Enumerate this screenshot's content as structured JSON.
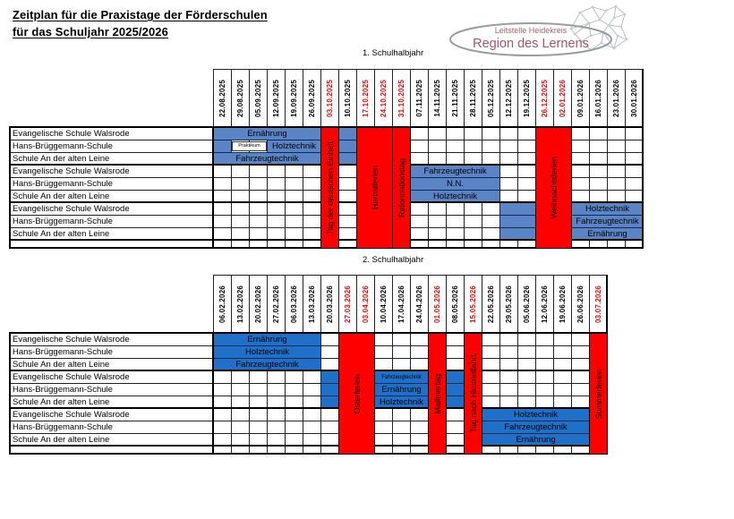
{
  "page": {
    "title_line1": "Zeitplan für die Praxistage der Förderschulen",
    "title_line2": "für das Schuljahr 2025/2026"
  },
  "logo": {
    "subtitle": "Leitstelle Heidekreis",
    "title": "Region des Lernens",
    "subtitle_color": "#9b6470",
    "title_color": "#a4556a"
  },
  "colors": {
    "holiday_red": "#ff0000",
    "date_red": "#ff0000",
    "practice_blue_h1": "#5b84c6",
    "practice_blue_h2": "#2070c9",
    "grid": "#222222"
  },
  "halfyears": [
    {
      "label": "1. Schulhalbjahr",
      "dates": [
        {
          "d": "22.08.2025",
          "red": false
        },
        {
          "d": "29.08.2025",
          "red": false
        },
        {
          "d": "05.09.2025",
          "red": false
        },
        {
          "d": "12.09.2025",
          "red": false
        },
        {
          "d": "19.09.2025",
          "red": false
        },
        {
          "d": "26.09.2025",
          "red": false
        },
        {
          "d": "03.10.2025",
          "red": true
        },
        {
          "d": "10.10.2025",
          "red": false
        },
        {
          "d": "17.10.2025",
          "red": true
        },
        {
          "d": "24.10.2025",
          "red": true
        },
        {
          "d": "31.10.2025",
          "red": true
        },
        {
          "d": "07.11.2025",
          "red": false
        },
        {
          "d": "14.11.2025",
          "red": false
        },
        {
          "d": "21.11.2025",
          "red": false
        },
        {
          "d": "28.11.2025",
          "red": false
        },
        {
          "d": "05.12.2025",
          "red": false
        },
        {
          "d": "12.12.2025",
          "red": false
        },
        {
          "d": "19.12.2025",
          "red": false
        },
        {
          "d": "26.12.2025",
          "red": true
        },
        {
          "d": "02.01.2026",
          "red": true
        },
        {
          "d": "09.01.2026",
          "red": false
        },
        {
          "d": "16.01.2026",
          "red": false
        },
        {
          "d": "23.01.2026",
          "red": false
        },
        {
          "d": "30.01.2026",
          "red": false
        }
      ],
      "holidays": [
        {
          "col": 7,
          "span": 1,
          "label": "Tag der deutschen Einheit"
        },
        {
          "col": 9,
          "span": 2,
          "label": "Herbstferien"
        },
        {
          "col": 11,
          "span": 1,
          "label": "Reformationstag"
        },
        {
          "col": 19,
          "span": 2,
          "label": "Weihnachtsferien"
        }
      ],
      "rows": [
        {
          "school": "Evangelische Schule Walsrode",
          "blocks": [
            {
              "col": 1,
              "span": 6,
              "label": "Ernährung",
              "type": "blue"
            },
            {
              "col": 8,
              "span": 1,
              "label": "",
              "type": "blue"
            }
          ]
        },
        {
          "school": "Hans-Brüggemann-Schule",
          "blocks": [
            {
              "col": 1,
              "span": 1,
              "label": "",
              "type": "blue"
            },
            {
              "col": 2,
              "span": 2,
              "label": "Praktikum",
              "type": "outline"
            },
            {
              "col": 4,
              "span": 3,
              "label": "Holztechnik",
              "type": "blue"
            },
            {
              "col": 8,
              "span": 1,
              "label": "",
              "type": "blue"
            }
          ]
        },
        {
          "school": "Schule An der alten Leine",
          "blocks": [
            {
              "col": 1,
              "span": 6,
              "label": "Fahrzeugtechnik",
              "type": "blue"
            },
            {
              "col": 8,
              "span": 1,
              "label": "",
              "type": "blue"
            }
          ]
        },
        {
          "school": "Evangelische Schule Walsrode",
          "blocks": [
            {
              "col": 12,
              "span": 5,
              "label": "Fahrzeugtechnik",
              "type": "blue"
            }
          ]
        },
        {
          "school": "Hans-Brüggemann-Schule",
          "blocks": [
            {
              "col": 12,
              "span": 5,
              "label": "N.N.",
              "type": "blue"
            }
          ]
        },
        {
          "school": "Schule An der alten Leine",
          "blocks": [
            {
              "col": 12,
              "span": 5,
              "label": "Holztechnik",
              "type": "blue"
            }
          ]
        },
        {
          "school": "Evangelische Schule Walsrode",
          "blocks": [
            {
              "col": 17,
              "span": 2,
              "label": "",
              "type": "blue"
            },
            {
              "col": 21,
              "span": 4,
              "label": "Holztechnik",
              "type": "blue"
            }
          ]
        },
        {
          "school": "Hans-Brüggemann-Schule",
          "blocks": [
            {
              "col": 17,
              "span": 2,
              "label": "",
              "type": "blue"
            },
            {
              "col": 21,
              "span": 4,
              "label": "Fahrzeugtechnik",
              "type": "blue"
            }
          ]
        },
        {
          "school": "Schule An der alten Leine",
          "blocks": [
            {
              "col": 17,
              "span": 2,
              "label": "",
              "type": "blue"
            },
            {
              "col": 21,
              "span": 4,
              "label": "Ernährung",
              "type": "blue"
            }
          ]
        }
      ]
    },
    {
      "label": "2. Schulhalbjahr",
      "dates": [
        {
          "d": "06.02.2026",
          "red": false
        },
        {
          "d": "13.02.2026",
          "red": false
        },
        {
          "d": "20.02.2026",
          "red": false
        },
        {
          "d": "27.02.2026",
          "red": false
        },
        {
          "d": "06.03.2026",
          "red": false
        },
        {
          "d": "13.03.2026",
          "red": false
        },
        {
          "d": "20.03.2026",
          "red": false
        },
        {
          "d": "27.03.2026",
          "red": true
        },
        {
          "d": "03.04.2026",
          "red": true
        },
        {
          "d": "10.04.2026",
          "red": false
        },
        {
          "d": "17.04.2026",
          "red": false
        },
        {
          "d": "24.04.2026",
          "red": false
        },
        {
          "d": "01.05.2026",
          "red": true
        },
        {
          "d": "08.05.2026",
          "red": false
        },
        {
          "d": "15.05.2026",
          "red": true
        },
        {
          "d": "22.05.2026",
          "red": false
        },
        {
          "d": "29.05.2026",
          "red": false
        },
        {
          "d": "05.06.2026",
          "red": false
        },
        {
          "d": "12.06.2026",
          "red": false
        },
        {
          "d": "19.06.2026",
          "red": false
        },
        {
          "d": "26.06.2026",
          "red": false
        },
        {
          "d": "03.07.2026",
          "red": true
        }
      ],
      "holidays": [
        {
          "col": 8,
          "span": 2,
          "label": "Osterferien"
        },
        {
          "col": 13,
          "span": 1,
          "label": "Maifeiertag"
        },
        {
          "col": 15,
          "span": 1,
          "label": "Tag nach Himmelfahrt"
        },
        {
          "col": 22,
          "span": 1,
          "label": "Sommerferien"
        }
      ],
      "rows": [
        {
          "school": "Evangelische Schule Walsrode",
          "blocks": [
            {
              "col": 1,
              "span": 6,
              "label": "Ernährung",
              "type": "blue"
            }
          ]
        },
        {
          "school": "Hans-Brüggemann-Schule",
          "blocks": [
            {
              "col": 1,
              "span": 6,
              "label": "Holztechnik",
              "type": "blue"
            }
          ]
        },
        {
          "school": "Schule An der alten Leine",
          "blocks": [
            {
              "col": 1,
              "span": 6,
              "label": "Fahrzeugtechnik",
              "type": "blue"
            }
          ]
        },
        {
          "school": "Evangelische Schule Walsrode",
          "blocks": [
            {
              "col": 7,
              "span": 1,
              "label": "",
              "type": "blue"
            },
            {
              "col": 10,
              "span": 3,
              "label": "Fahrzeugtechnik",
              "type": "blue",
              "small": true
            },
            {
              "col": 14,
              "span": 1,
              "label": "",
              "type": "blue"
            }
          ]
        },
        {
          "school": "Hans-Brüggemann-Schule",
          "blocks": [
            {
              "col": 7,
              "span": 1,
              "label": "",
              "type": "blue"
            },
            {
              "col": 10,
              "span": 3,
              "label": "Ernährung",
              "type": "blue"
            },
            {
              "col": 14,
              "span": 1,
              "label": "",
              "type": "blue"
            }
          ]
        },
        {
          "school": "Schule An der alten Leine",
          "blocks": [
            {
              "col": 7,
              "span": 1,
              "label": "",
              "type": "blue"
            },
            {
              "col": 10,
              "span": 3,
              "label": "Holztechnik",
              "type": "blue"
            },
            {
              "col": 14,
              "span": 1,
              "label": "",
              "type": "blue"
            }
          ]
        },
        {
          "school": "Evangelische Schule Walsrode",
          "blocks": [
            {
              "col": 16,
              "span": 6,
              "label": "Holztechnik",
              "type": "blue"
            }
          ]
        },
        {
          "school": "Hans-Brüggemann-Schule",
          "blocks": [
            {
              "col": 16,
              "span": 6,
              "label": "Fahrzeugtechnik",
              "type": "blue"
            }
          ]
        },
        {
          "school": "Schule An der alten Leine",
          "blocks": [
            {
              "col": 16,
              "span": 6,
              "label": "Ernährung",
              "type": "blue"
            }
          ]
        }
      ]
    }
  ]
}
